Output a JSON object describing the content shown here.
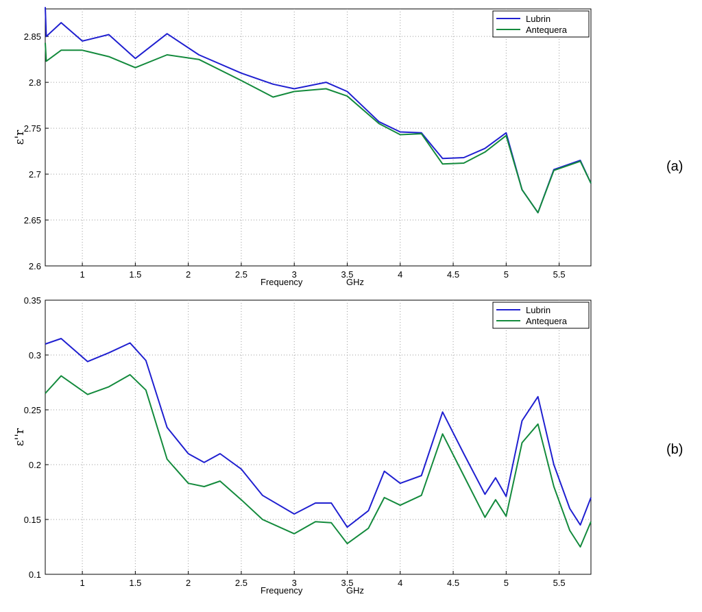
{
  "chart_data": [
    {
      "type": "line",
      "panel_label": "(a)",
      "xlabel": "Frequency",
      "xunit": "GHz",
      "ylabel": "ε'r",
      "xlim": [
        0.65,
        5.8
      ],
      "ylim": [
        2.6,
        2.88
      ],
      "grid": true,
      "legend_position": "top-right",
      "xticks": [
        "1",
        "1.5",
        "2",
        "2.5",
        "3",
        "3.5",
        "4",
        "4.5",
        "5",
        "5.5"
      ],
      "yticks": [
        "2.6",
        "2.65",
        "2.7",
        "2.75",
        "2.8",
        "2.85"
      ],
      "x": [
        0.65,
        0.66,
        0.8,
        1.0,
        1.25,
        1.5,
        1.8,
        2.1,
        2.5,
        2.8,
        3.0,
        3.3,
        3.5,
        3.8,
        4.0,
        4.2,
        4.4,
        4.6,
        4.8,
        5.0,
        5.15,
        5.3,
        5.45,
        5.7,
        5.8
      ],
      "series": [
        {
          "name": "Lubrin",
          "color": "#1f1fd0",
          "values": [
            2.882,
            2.85,
            2.865,
            2.845,
            2.852,
            2.826,
            2.853,
            2.83,
            2.81,
            2.798,
            2.793,
            2.8,
            2.79,
            2.757,
            2.746,
            2.745,
            2.717,
            2.718,
            2.728,
            2.745,
            2.683,
            2.658,
            2.705,
            2.715,
            2.69
          ]
        },
        {
          "name": "Antequera",
          "color": "#138a3c",
          "values": [
            2.843,
            2.823,
            2.835,
            2.835,
            2.828,
            2.816,
            2.83,
            2.825,
            2.802,
            2.784,
            2.79,
            2.793,
            2.785,
            2.755,
            2.743,
            2.744,
            2.711,
            2.712,
            2.724,
            2.742,
            2.683,
            2.658,
            2.704,
            2.714,
            2.69
          ]
        }
      ]
    },
    {
      "type": "line",
      "panel_label": "(b)",
      "xlabel": "Frequency",
      "xunit": "GHz",
      "ylabel": "ε''r",
      "xlim": [
        0.65,
        5.8
      ],
      "ylim": [
        0.1,
        0.35
      ],
      "grid": true,
      "legend_position": "top-right",
      "xticks": [
        "1",
        "1.5",
        "2",
        "2.5",
        "3",
        "3.5",
        "4",
        "4.5",
        "5",
        "5.5"
      ],
      "yticks": [
        "0.1",
        "0.15",
        "0.2",
        "0.25",
        "0.3",
        "0.35"
      ],
      "x": [
        0.65,
        0.8,
        1.05,
        1.25,
        1.45,
        1.6,
        1.8,
        2.0,
        2.15,
        2.3,
        2.5,
        2.7,
        3.0,
        3.2,
        3.35,
        3.5,
        3.7,
        3.85,
        4.0,
        4.2,
        4.4,
        4.6,
        4.8,
        4.9,
        5.0,
        5.15,
        5.3,
        5.45,
        5.6,
        5.7,
        5.8
      ],
      "series": [
        {
          "name": "Lubrin",
          "color": "#1f1fd0",
          "values": [
            0.31,
            0.315,
            0.294,
            0.302,
            0.311,
            0.295,
            0.234,
            0.21,
            0.202,
            0.21,
            0.196,
            0.172,
            0.155,
            0.165,
            0.165,
            0.143,
            0.158,
            0.194,
            0.183,
            0.19,
            0.248,
            0.21,
            0.173,
            0.188,
            0.171,
            0.24,
            0.262,
            0.2,
            0.16,
            0.145,
            0.17
          ]
        },
        {
          "name": "Antequera",
          "color": "#138a3c",
          "values": [
            0.265,
            0.281,
            0.264,
            0.271,
            0.282,
            0.268,
            0.205,
            0.183,
            0.18,
            0.185,
            0.168,
            0.15,
            0.137,
            0.148,
            0.147,
            0.128,
            0.142,
            0.17,
            0.163,
            0.172,
            0.228,
            0.19,
            0.152,
            0.168,
            0.153,
            0.22,
            0.237,
            0.18,
            0.14,
            0.125,
            0.148
          ]
        }
      ]
    }
  ]
}
